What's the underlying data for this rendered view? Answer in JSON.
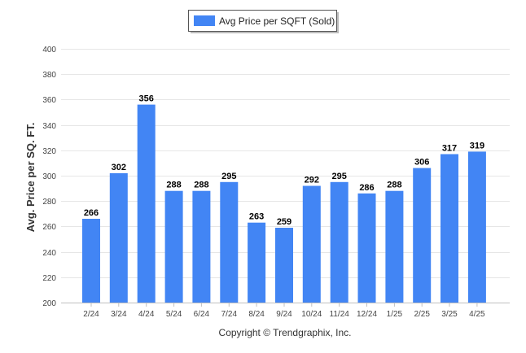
{
  "chart_data": {
    "type": "bar",
    "categories": [
      "2/24",
      "3/24",
      "4/24",
      "5/24",
      "6/24",
      "7/24",
      "8/24",
      "9/24",
      "10/24",
      "11/24",
      "12/24",
      "1/25",
      "2/25",
      "3/25",
      "4/25"
    ],
    "series": [
      {
        "name": "Avg Price per SQFT (Sold)",
        "values": [
          266,
          302,
          356,
          288,
          288,
          295,
          263,
          259,
          292,
          295,
          286,
          288,
          306,
          317,
          319
        ],
        "color": "#4285f4"
      }
    ],
    "title": "",
    "xlabel": "",
    "ylabel": "Avg. Price per SQ. FT.",
    "ylim": [
      200,
      400
    ],
    "yticks": [
      200,
      220,
      240,
      260,
      280,
      300,
      320,
      340,
      360,
      380,
      400
    ],
    "grid": true,
    "legend_position": "top-center",
    "data_labels": true
  },
  "footer": {
    "copyright": "Copyright © Trendgraphix, Inc."
  }
}
